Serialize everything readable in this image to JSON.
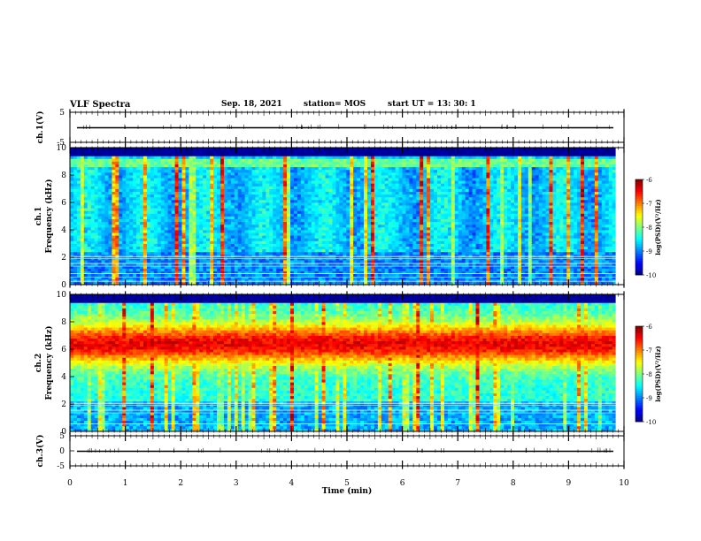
{
  "header": {
    "title": "VLF Spectra",
    "date": "Sep. 18, 2021",
    "station": "station= MOS",
    "start": "start  UT  =   13: 30: 1"
  },
  "chart_data": [
    {
      "type": "line",
      "name": "ch1-waveform",
      "ylabel": "ch.1(V)",
      "ylim": [
        -5,
        5
      ],
      "yticks": [
        "5",
        "-5"
      ],
      "xlim": [
        0,
        10
      ],
      "baseline": 0
    },
    {
      "type": "heatmap",
      "name": "ch1-spectrogram",
      "ylabel_line1": "ch.1",
      "ylabel_line2": "Frequency (kHz)",
      "ylim": [
        0,
        10
      ],
      "yticks": [
        "0",
        "2",
        "4",
        "6",
        "8",
        "10"
      ],
      "xlim": [
        0,
        10
      ],
      "data_end_min": 9.85,
      "colorbar": {
        "label": "log(PSD)(V²/Hz)",
        "range": [
          -10,
          -6
        ],
        "ticks": [
          "-6",
          "-7",
          "-8",
          "-9",
          "-10"
        ]
      },
      "hum_lines_khz": [
        0.25,
        0.55,
        0.8,
        1.35,
        1.55,
        1.9,
        2.05
      ]
    },
    {
      "type": "heatmap",
      "name": "ch2-spectrogram",
      "ylabel_line1": "ch.2",
      "ylabel_line2": "Frequency (kHz)",
      "ylim": [
        0,
        10
      ],
      "yticks": [
        "0",
        "2",
        "4",
        "6",
        "8",
        "10"
      ],
      "xlim": [
        0,
        10
      ],
      "data_end_min": 9.85,
      "colorbar": {
        "label": "log(PSD)(V²/Hz)",
        "range": [
          -10,
          -6
        ],
        "ticks": [
          "-6",
          "-7",
          "-8",
          "-9",
          "-10"
        ]
      },
      "hum_lines_khz": [
        0.55,
        1.35,
        1.55,
        1.9,
        2.05
      ]
    },
    {
      "type": "line",
      "name": "ch3-waveform",
      "ylabel": "ch.3(V)",
      "ylim": [
        -5,
        5
      ],
      "yticks": [
        "5",
        "0",
        "-5"
      ],
      "xlim": [
        0,
        10
      ],
      "baseline": 0,
      "xlabel": "Time  (min)",
      "xticks": [
        "0",
        "1",
        "2",
        "3",
        "4",
        "5",
        "6",
        "7",
        "8",
        "9",
        "10"
      ]
    }
  ]
}
